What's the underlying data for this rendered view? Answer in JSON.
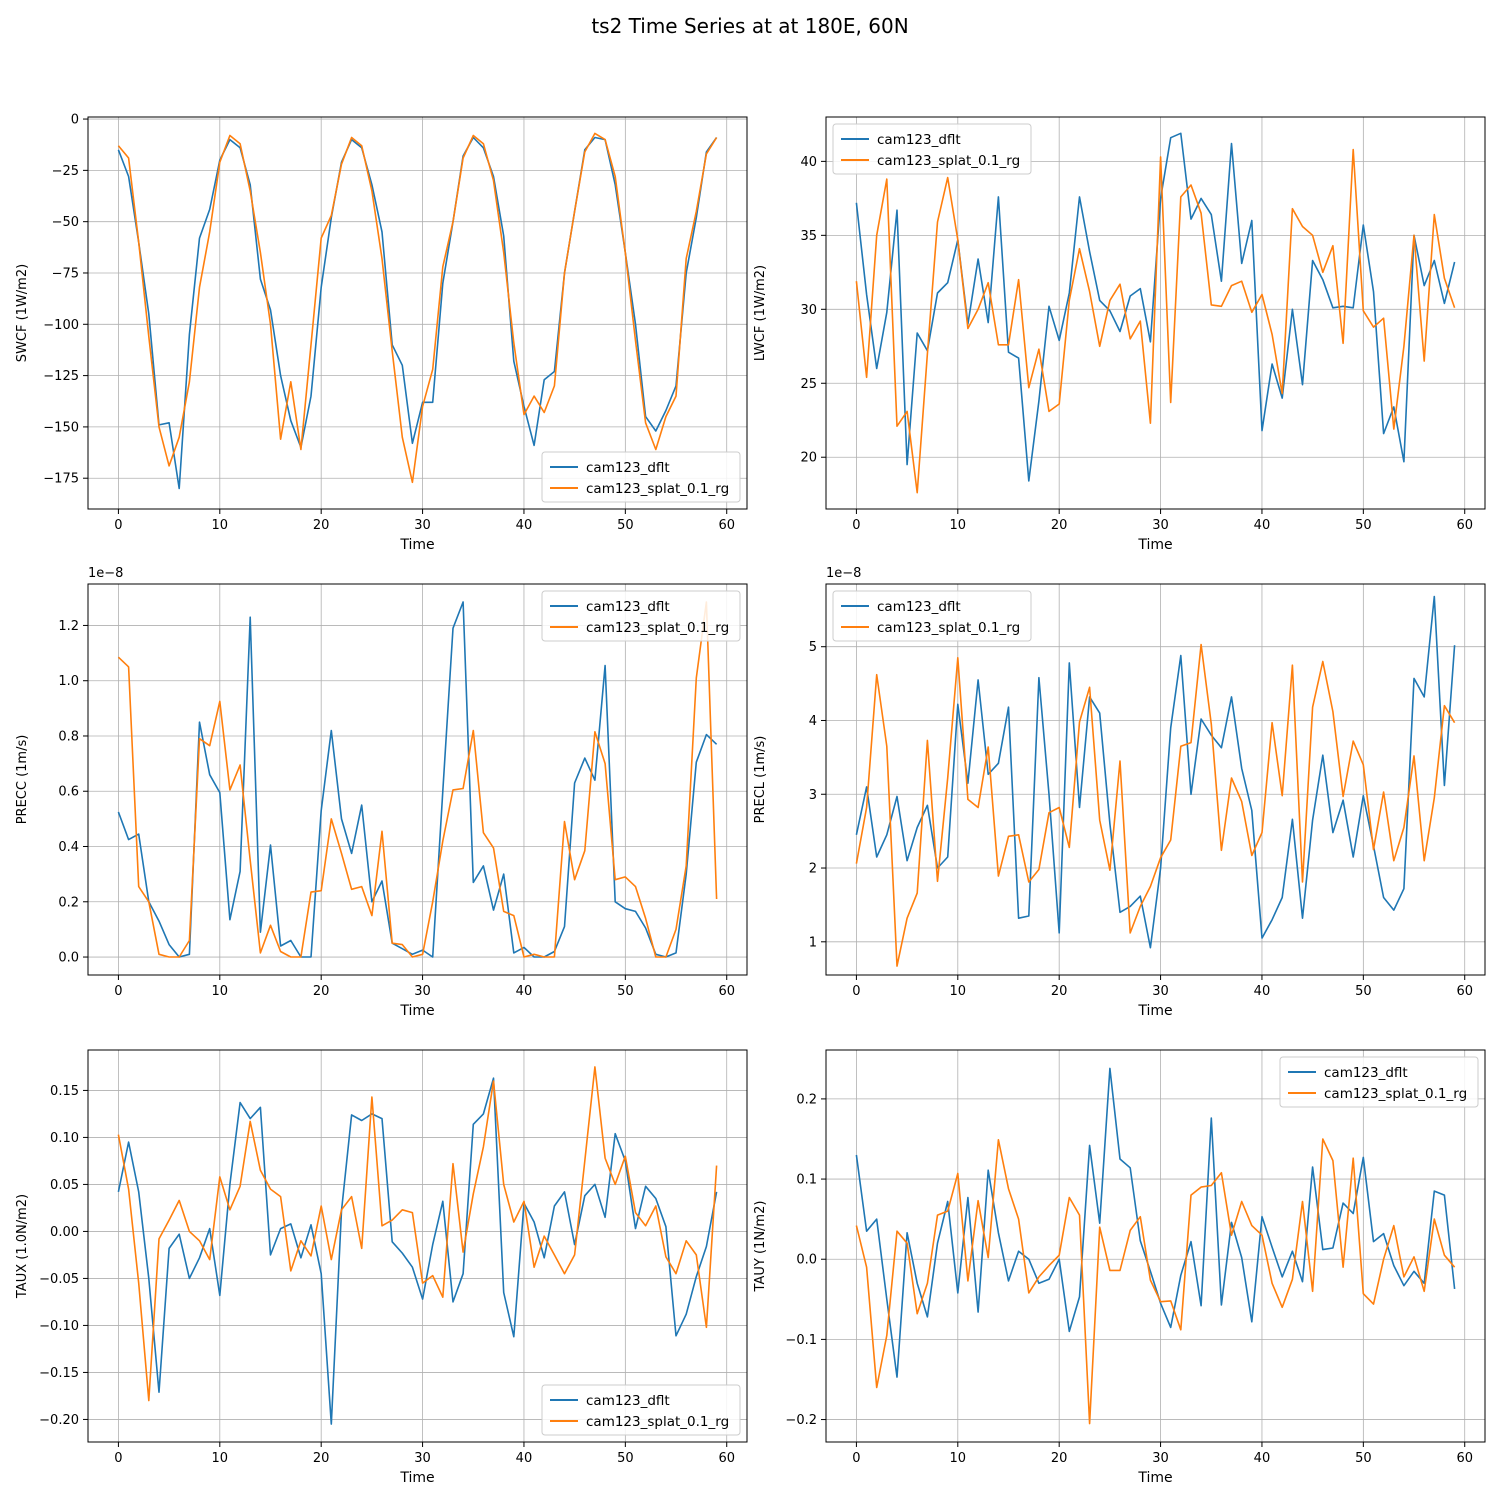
{
  "figure": {
    "title": "ts2 Time Series at at 180E, 60N"
  },
  "colors": {
    "cam123_dflt": "#1f77b4",
    "cam123_splat_0.1_rg": "#ff7f0e",
    "grid": "#b0b0b0"
  },
  "chart_data": [
    {
      "type": "line",
      "id": "swcf",
      "xlabel": "Time",
      "ylabel": "SWCF (1W/m2)",
      "xlim": [
        -3,
        62
      ],
      "ylim": [
        -190,
        1
      ],
      "xticks": [
        0,
        10,
        20,
        30,
        40,
        50,
        60
      ],
      "yticks": [
        0,
        -25,
        -50,
        -75,
        -100,
        -125,
        -150,
        -175
      ],
      "offset_text": "",
      "grid": true,
      "legend": "lower right",
      "series": [
        {
          "name": "cam123_dflt",
          "values": [
            -15,
            -28,
            -60,
            -95,
            -149,
            -148,
            -180,
            -105,
            -58,
            -44,
            -20,
            -10,
            -14,
            -32,
            -78,
            -93,
            -125,
            -147,
            -160,
            -135,
            -82,
            -48,
            -21,
            -10,
            -14,
            -32,
            -55,
            -110,
            -120,
            -158,
            -138,
            -138,
            -80,
            -50,
            -18,
            -9,
            -14,
            -28,
            -57,
            -118,
            -140,
            -159,
            -127,
            -123,
            -75,
            -45,
            -15,
            -9,
            -10,
            -32,
            -65,
            -100,
            -145,
            -152,
            -142,
            -130,
            -75,
            -48,
            -16,
            -9
          ]
        },
        {
          "name": "cam123_splat_0.1_rg",
          "values": [
            -13,
            -19,
            -60,
            -106,
            -150,
            -169,
            -155,
            -128,
            -82,
            -55,
            -21,
            -8,
            -12,
            -35,
            -65,
            -100,
            -156,
            -128,
            -161,
            -110,
            -58,
            -47,
            -22,
            -9,
            -13,
            -35,
            -68,
            -113,
            -155,
            -177,
            -140,
            -122,
            -72,
            -50,
            -19,
            -8,
            -12,
            -30,
            -65,
            -109,
            -144,
            -135,
            -143,
            -130,
            -75,
            -45,
            -16,
            -7,
            -10,
            -28,
            -65,
            -108,
            -148,
            -161,
            -145,
            -135,
            -68,
            -45,
            -17,
            -9
          ]
        }
      ]
    },
    {
      "type": "line",
      "id": "lwcf",
      "xlabel": "Time",
      "ylabel": "LWCF (1W/m2)",
      "xlim": [
        -3,
        62
      ],
      "ylim": [
        16.5,
        43
      ],
      "xticks": [
        0,
        10,
        20,
        30,
        40,
        50,
        60
      ],
      "yticks": [
        20,
        25,
        30,
        35,
        40
      ],
      "offset_text": "",
      "grid": true,
      "legend": "upper left",
      "series": [
        {
          "name": "cam123_dflt",
          "values": [
            37.2,
            31,
            26,
            29.8,
            36.7,
            19.5,
            28.4,
            27.2,
            31.1,
            31.8,
            34.7,
            29,
            33.4,
            29.1,
            37.6,
            27.1,
            26.7,
            18.4,
            23.8,
            30.2,
            27.9,
            31.1,
            37.6,
            33.9,
            30.6,
            29.9,
            28.5,
            30.9,
            31.4,
            27.8,
            37.5,
            41.6,
            41.9,
            36.1,
            37.5,
            36.4,
            31.9,
            41.2,
            33.1,
            36,
            21.8,
            26.3,
            24,
            30,
            24.9,
            33.3,
            32,
            30.1,
            30.2,
            30.1,
            35.7,
            31.2,
            21.6,
            23.4,
            19.7,
            35,
            31.6,
            33.3,
            30.4,
            33.2
          ]
        },
        {
          "name": "cam123_splat_0.1_rg",
          "values": [
            31.9,
            25.4,
            35,
            38.8,
            22.1,
            23.1,
            17.6,
            27,
            35.9,
            38.9,
            34.7,
            28.7,
            30,
            31.8,
            27.6,
            27.6,
            32,
            24.7,
            27.3,
            23.1,
            23.6,
            30.6,
            34.1,
            31.2,
            27.5,
            30.6,
            31.7,
            28,
            29.2,
            22.3,
            40.3,
            23.7,
            37.6,
            38.4,
            36.5,
            30.3,
            30.2,
            31.6,
            31.9,
            29.8,
            31,
            28.3,
            24.3,
            36.8,
            35.6,
            35,
            32.5,
            34.3,
            27.7,
            40.8,
            29.9,
            28.8,
            29.4,
            21.9,
            27.5,
            35,
            26.5,
            36.4,
            32.1,
            30.1
          ]
        }
      ]
    },
    {
      "type": "line",
      "id": "precc",
      "xlabel": "Time",
      "ylabel": "PRECC (1m/s)",
      "xlim": [
        -3,
        62
      ],
      "ylim": [
        -0.065,
        1.35
      ],
      "xticks": [
        0,
        10,
        20,
        30,
        40,
        50,
        60
      ],
      "yticks": [
        0.0,
        0.2,
        0.4,
        0.6,
        0.8,
        1.0,
        1.2
      ],
      "offset_text": "1e−8",
      "grid": true,
      "legend": "upper right",
      "series": [
        {
          "name": "cam123_dflt",
          "values": [
            0.525,
            0.425,
            0.445,
            0.2,
            0.13,
            0.045,
            0.0,
            0.01,
            0.85,
            0.66,
            0.595,
            0.135,
            0.31,
            1.23,
            0.09,
            0.405,
            0.04,
            0.06,
            0.0,
            0.0,
            0.53,
            0.82,
            0.5,
            0.375,
            0.55,
            0.2,
            0.275,
            0.05,
            0.03,
            0.01,
            0.025,
            0.0,
            0.6,
            1.19,
            1.285,
            0.27,
            0.33,
            0.17,
            0.3,
            0.015,
            0.035,
            0.0,
            0.0,
            0.02,
            0.11,
            0.63,
            0.72,
            0.64,
            1.055,
            0.2,
            0.175,
            0.165,
            0.105,
            0.01,
            0.0,
            0.015,
            0.3,
            0.705,
            0.805,
            0.77
          ]
        },
        {
          "name": "cam123_splat_0.1_rg",
          "values": [
            1.085,
            1.05,
            0.255,
            0.2,
            0.01,
            0.0,
            0.0,
            0.06,
            0.79,
            0.765,
            0.925,
            0.605,
            0.695,
            0.35,
            0.015,
            0.115,
            0.02,
            0.0,
            0.0,
            0.235,
            0.24,
            0.5,
            0.375,
            0.245,
            0.255,
            0.15,
            0.455,
            0.05,
            0.045,
            0.0,
            0.01,
            0.2,
            0.42,
            0.605,
            0.61,
            0.82,
            0.45,
            0.395,
            0.165,
            0.15,
            0.0,
            0.01,
            0.0,
            0.0,
            0.49,
            0.28,
            0.385,
            0.815,
            0.7,
            0.28,
            0.29,
            0.255,
            0.14,
            0.0,
            0.0,
            0.1,
            0.33,
            1.01,
            1.285,
            0.21
          ]
        }
      ]
    },
    {
      "type": "line",
      "id": "precl",
      "xlabel": "Time",
      "ylabel": "PRECL (1m/s)",
      "xlim": [
        -3,
        62
      ],
      "ylim": [
        0.55,
        5.85
      ],
      "xticks": [
        0,
        10,
        20,
        30,
        40,
        50,
        60
      ],
      "yticks": [
        1,
        2,
        3,
        4,
        5
      ],
      "offset_text": "1e−8",
      "grid": true,
      "legend": "upper left",
      "series": [
        {
          "name": "cam123_dflt",
          "values": [
            2.45,
            3.1,
            2.15,
            2.45,
            2.97,
            2.1,
            2.55,
            2.85,
            2.0,
            2.15,
            4.22,
            3.15,
            4.55,
            3.27,
            3.42,
            4.18,
            1.32,
            1.35,
            4.58,
            3.0,
            1.12,
            4.78,
            2.82,
            4.32,
            4.1,
            2.6,
            1.4,
            1.48,
            1.62,
            0.92,
            2.0,
            3.9,
            4.88,
            3.0,
            4.02,
            3.8,
            3.63,
            4.32,
            3.35,
            2.78,
            1.05,
            1.3,
            1.6,
            2.66,
            1.32,
            2.65,
            3.53,
            2.48,
            2.92,
            2.15,
            2.98,
            2.3,
            1.6,
            1.43,
            1.72,
            4.57,
            4.32,
            5.68,
            3.12,
            5.02
          ]
        },
        {
          "name": "cam123_splat_0.1_rg",
          "values": [
            2.06,
            2.82,
            4.62,
            3.65,
            0.67,
            1.32,
            1.66,
            3.73,
            1.82,
            3.22,
            4.85,
            2.93,
            2.82,
            3.64,
            1.89,
            2.43,
            2.45,
            1.81,
            1.98,
            2.75,
            2.82,
            2.28,
            3.98,
            4.45,
            2.65,
            1.97,
            3.45,
            1.12,
            1.48,
            1.75,
            2.14,
            2.38,
            3.65,
            3.7,
            5.03,
            3.95,
            2.24,
            3.22,
            2.9,
            2.17,
            2.48,
            3.97,
            2.98,
            4.75,
            1.81,
            4.18,
            4.8,
            4.12,
            2.97,
            3.72,
            3.4,
            2.25,
            3.03,
            2.1,
            2.55,
            3.52,
            2.1,
            2.95,
            4.2,
            3.97
          ]
        }
      ]
    },
    {
      "type": "line",
      "id": "taux",
      "xlabel": "Time",
      "ylabel": "TAUX (1.0N/m2)",
      "xlim": [
        -3,
        62
      ],
      "ylim": [
        -0.224,
        0.193
      ],
      "xticks": [
        0,
        10,
        20,
        30,
        40,
        50,
        60
      ],
      "yticks": [
        -0.2,
        -0.15,
        -0.1,
        -0.05,
        0.0,
        0.05,
        0.1,
        0.15
      ],
      "offset_text": "",
      "grid": true,
      "legend": "lower right",
      "series": [
        {
          "name": "cam123_dflt",
          "values": [
            0.042,
            0.095,
            0.042,
            -0.05,
            -0.171,
            -0.018,
            -0.003,
            -0.05,
            -0.028,
            0.003,
            -0.068,
            0.05,
            0.137,
            0.12,
            0.132,
            -0.025,
            0.003,
            0.008,
            -0.028,
            0.007,
            -0.045,
            -0.205,
            0.022,
            0.124,
            0.118,
            0.125,
            0.12,
            -0.011,
            -0.023,
            -0.038,
            -0.072,
            -0.014,
            0.032,
            -0.075,
            -0.045,
            0.114,
            0.125,
            0.163,
            -0.065,
            -0.112,
            0.03,
            0.01,
            -0.028,
            0.027,
            0.042,
            -0.014,
            0.038,
            0.05,
            0.015,
            0.104,
            0.075,
            0.003,
            0.048,
            0.035,
            0.005,
            -0.111,
            -0.088,
            -0.048,
            -0.016,
            0.042
          ]
        },
        {
          "name": "cam123_splat_0.1_rg",
          "values": [
            0.103,
            0.045,
            -0.055,
            -0.18,
            -0.008,
            0.012,
            0.033,
            0.0,
            -0.01,
            -0.03,
            0.058,
            0.023,
            0.048,
            0.117,
            0.065,
            0.045,
            0.037,
            -0.042,
            -0.01,
            -0.026,
            0.027,
            -0.03,
            0.023,
            0.037,
            -0.018,
            0.143,
            0.006,
            0.012,
            0.023,
            0.02,
            -0.055,
            -0.047,
            -0.07,
            0.072,
            -0.022,
            0.04,
            0.09,
            0.16,
            0.05,
            0.01,
            0.032,
            -0.038,
            -0.005,
            -0.025,
            -0.045,
            -0.025,
            0.075,
            0.175,
            0.078,
            0.05,
            0.08,
            0.02,
            0.006,
            0.027,
            -0.027,
            -0.045,
            -0.01,
            -0.025,
            -0.102,
            0.07
          ]
        }
      ]
    },
    {
      "type": "line",
      "id": "tauy",
      "xlabel": "Time",
      "ylabel": "TAUY (1N/m2)",
      "xlim": [
        -3,
        62
      ],
      "ylim": [
        -0.228,
        0.261
      ],
      "xticks": [
        0,
        10,
        20,
        30,
        40,
        50,
        60
      ],
      "yticks": [
        -0.2,
        -0.1,
        0.0,
        0.1,
        0.2
      ],
      "offset_text": "",
      "grid": true,
      "legend": "upper right",
      "series": [
        {
          "name": "cam123_dflt",
          "values": [
            0.13,
            0.035,
            0.05,
            -0.05,
            -0.147,
            0.033,
            -0.03,
            -0.072,
            0.02,
            0.072,
            -0.042,
            0.077,
            -0.066,
            0.111,
            0.033,
            -0.027,
            0.01,
            0.0,
            -0.03,
            -0.025,
            0.0,
            -0.09,
            -0.047,
            0.142,
            0.045,
            0.238,
            0.125,
            0.114,
            0.023,
            -0.015,
            -0.055,
            -0.085,
            -0.02,
            0.022,
            -0.058,
            0.176,
            -0.057,
            0.046,
            0.002,
            -0.078,
            0.053,
            0.015,
            -0.022,
            0.01,
            -0.028,
            0.115,
            0.012,
            0.014,
            0.07,
            0.057,
            0.127,
            0.022,
            0.032,
            -0.008,
            -0.033,
            -0.015,
            -0.03,
            0.085,
            0.08,
            -0.037
          ]
        },
        {
          "name": "cam123_splat_0.1_rg",
          "values": [
            0.042,
            -0.01,
            -0.16,
            -0.095,
            0.035,
            0.02,
            -0.068,
            -0.03,
            0.055,
            0.06,
            0.107,
            -0.027,
            0.073,
            0.002,
            0.149,
            0.088,
            0.05,
            -0.042,
            -0.022,
            -0.008,
            0.005,
            0.077,
            0.055,
            -0.205,
            0.04,
            -0.014,
            -0.014,
            0.036,
            0.053,
            -0.026,
            -0.053,
            -0.052,
            -0.088,
            0.08,
            0.09,
            0.092,
            0.108,
            0.03,
            0.072,
            0.042,
            0.03,
            -0.03,
            -0.06,
            -0.025,
            0.072,
            -0.04,
            0.15,
            0.123,
            -0.01,
            0.126,
            -0.043,
            -0.056,
            0.0,
            0.042,
            -0.022,
            0.003,
            -0.04,
            0.05,
            0.005,
            -0.01
          ]
        }
      ]
    }
  ]
}
